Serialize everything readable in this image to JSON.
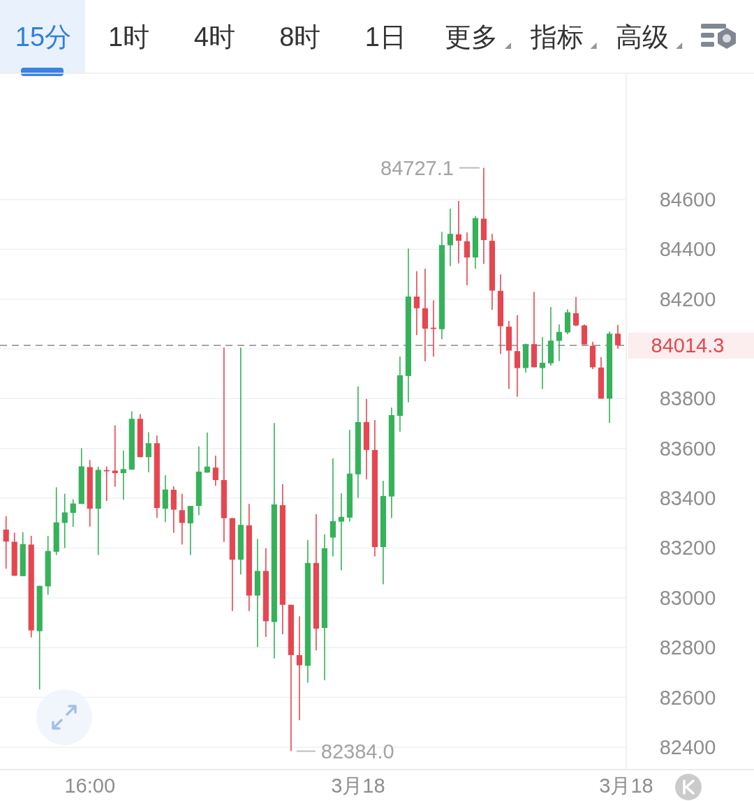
{
  "chart_data": {
    "type": "candlestick",
    "annotations": [
      "15分",
      "1时",
      "4时",
      "8时",
      "1日",
      "更多",
      "指标",
      "高级",
      "84727.1",
      "82384.0"
    ],
    "categories": [
      null,
      null,
      null,
      null,
      null,
      null,
      null,
      null,
      null,
      null,
      "16:00",
      null,
      null,
      null,
      null,
      null,
      null,
      null,
      null,
      null,
      null,
      null,
      null,
      null,
      null,
      null,
      null,
      null,
      null,
      null,
      null,
      null,
      null,
      null,
      null,
      null,
      null,
      null,
      null,
      null,
      null,
      null,
      "3月18",
      null,
      null,
      null,
      null,
      null,
      null,
      null,
      null,
      null,
      null,
      null,
      null,
      null,
      null,
      null,
      null,
      null,
      null,
      null,
      null,
      null,
      null,
      null,
      null,
      null,
      null,
      null,
      null,
      null,
      null,
      null,
      "3月18"
    ],
    "ohlc": [
      [
        83274,
        83328,
        83117,
        83226
      ],
      [
        83225,
        83262,
        83087,
        83089
      ],
      [
        83087,
        83264,
        83087,
        83216
      ],
      [
        83214,
        83249,
        82841,
        82869
      ],
      [
        82866,
        83048,
        82632,
        83048
      ],
      [
        83046,
        83249,
        83012,
        83188
      ],
      [
        83185,
        83444,
        83172,
        83303
      ],
      [
        83301,
        83418,
        83200,
        83343
      ],
      [
        83341,
        83396,
        83285,
        83379
      ],
      [
        83377,
        83601,
        83377,
        83528
      ],
      [
        83525,
        83553,
        83286,
        83358
      ],
      [
        83358,
        83527,
        83172,
        83514
      ],
      [
        83513,
        83527,
        83389,
        83508
      ],
      [
        83511,
        83693,
        83446,
        83501
      ],
      [
        83501,
        83592,
        83394,
        83517
      ],
      [
        83515,
        83749,
        83515,
        83719
      ],
      [
        83719,
        83738,
        83565,
        83565
      ],
      [
        83565,
        83665,
        83504,
        83621
      ],
      [
        83621,
        83652,
        83321,
        83361
      ],
      [
        83358,
        83492,
        83304,
        83435
      ],
      [
        83434,
        83448,
        83261,
        83354
      ],
      [
        83352,
        83418,
        83214,
        83301
      ],
      [
        83299,
        83369,
        83172,
        83369
      ],
      [
        83369,
        83608,
        83332,
        83507
      ],
      [
        83503,
        83664,
        83503,
        83527
      ],
      [
        83523,
        83571,
        83450,
        83473
      ],
      [
        83473,
        84005,
        83225,
        83320
      ],
      [
        83320,
        83320,
        82947,
        83153
      ],
      [
        83153,
        84005,
        83094,
        83293
      ],
      [
        83291,
        83377,
        82947,
        83009
      ],
      [
        83009,
        83236,
        82802,
        83108
      ],
      [
        83108,
        83199,
        82843,
        82906
      ],
      [
        82903,
        83702,
        82756,
        83375
      ],
      [
        83372,
        83456,
        82854,
        82972
      ],
      [
        82972,
        82972,
        82384.0,
        82770
      ],
      [
        82770,
        82926,
        82508,
        82729
      ],
      [
        82727,
        83232,
        82659,
        83140
      ],
      [
        83140,
        83336,
        82789,
        82876
      ],
      [
        82879,
        83255,
        82669,
        83199
      ],
      [
        83242,
        83560,
        83166,
        83308
      ],
      [
        83306,
        83420,
        83110,
        83325
      ],
      [
        83322,
        83675,
        83306,
        83499
      ],
      [
        83496,
        83849,
        83401,
        83706
      ],
      [
        83706,
        83799,
        83476,
        83594
      ],
      [
        83594,
        83714,
        83166,
        83204
      ],
      [
        83204,
        83470,
        83054,
        83409
      ],
      [
        83407,
        83764,
        83320,
        83734
      ],
      [
        83731,
        83969,
        83667,
        83894
      ],
      [
        83891,
        84403,
        83785,
        84210
      ],
      [
        84210,
        84312,
        84055,
        84163
      ],
      [
        84163,
        84322,
        83950,
        84081
      ],
      [
        84085,
        84195,
        83969,
        84080
      ],
      [
        84079,
        84470,
        84039,
        84417
      ],
      [
        84416,
        84563,
        84332,
        84462
      ],
      [
        84460,
        84594,
        84343,
        84434
      ],
      [
        84432,
        84467,
        84255,
        84367
      ],
      [
        84367,
        84533,
        84322,
        84525
      ],
      [
        84523,
        84727.1,
        84341,
        84437
      ],
      [
        84434,
        84462,
        84157,
        84234
      ],
      [
        84233,
        84299,
        83979,
        84091
      ],
      [
        84089,
        84112,
        83839,
        83993
      ],
      [
        83991,
        84135,
        83808,
        83923
      ],
      [
        83923,
        84021,
        83905,
        84019
      ],
      [
        84019,
        84229,
        83926,
        83926
      ],
      [
        83923,
        84047,
        83839,
        83944
      ],
      [
        83942,
        84168,
        83933,
        84033
      ],
      [
        84032,
        84098,
        83951,
        84068
      ],
      [
        84066,
        84159,
        84059,
        84147
      ],
      [
        84143,
        84208,
        84091,
        84094
      ],
      [
        84094,
        84098,
        84017,
        84018
      ],
      [
        84012,
        84029,
        83919,
        83926
      ],
      [
        83925,
        83967,
        83800,
        83800
      ],
      [
        83800,
        84070,
        83702,
        84061
      ],
      [
        84061,
        84096,
        84001,
        84014.3
      ],
      null
    ],
    "colors": [
      "#e54650",
      "#e54650",
      "#35b25a",
      "#e54650",
      "#35b25a",
      "#35b25a",
      "#35b25a",
      "#35b25a",
      "#35b25a",
      "#35b25a",
      "#e54650",
      "#35b25a",
      "#e54650",
      "#e54650",
      "#35b25a",
      "#35b25a",
      "#e54650",
      "#35b25a",
      "#e54650",
      "#35b25a",
      "#e54650",
      "#e54650",
      "#35b25a",
      "#35b25a",
      "#35b25a",
      "#e54650",
      "#e54650",
      "#e54650",
      "#35b25a",
      "#e54650",
      "#35b25a",
      "#e54650",
      "#35b25a",
      "#e54650",
      "#e54650",
      "#e54650",
      "#35b25a",
      "#e54650",
      "#35b25a",
      "#35b25a",
      "#35b25a",
      "#35b25a",
      "#35b25a",
      "#e54650",
      "#e54650",
      "#35b25a",
      "#35b25a",
      "#35b25a",
      "#35b25a",
      "#e54650",
      "#e54650",
      "#e54650",
      "#35b25a",
      "#35b25a",
      "#e54650",
      "#e54650",
      "#35b25a",
      "#e54650",
      "#e54650",
      "#e54650",
      "#e54650",
      "#e54650",
      "#35b25a",
      "#e54650",
      "#35b25a",
      "#35b25a",
      "#35b25a",
      "#35b25a",
      "#e54650",
      "#e54650",
      "#e54650",
      "#e54650",
      "#35b25a",
      "#e54650",
      null
    ],
    "ylim": [
      82310,
      85107
    ],
    "yticks": [
      82400,
      82600,
      82800,
      83000,
      83200,
      83400,
      83600,
      83800,
      {
        "value": 84000,
        "label": null
      },
      84200,
      84400,
      84600
    ],
    "grid": "y",
    "ref_lines": [
      {
        "axis": "y",
        "value": 84014.3,
        "label": "84014.3",
        "color": "#a6a6a6",
        "line_style": "dashed"
      }
    ]
  }
}
